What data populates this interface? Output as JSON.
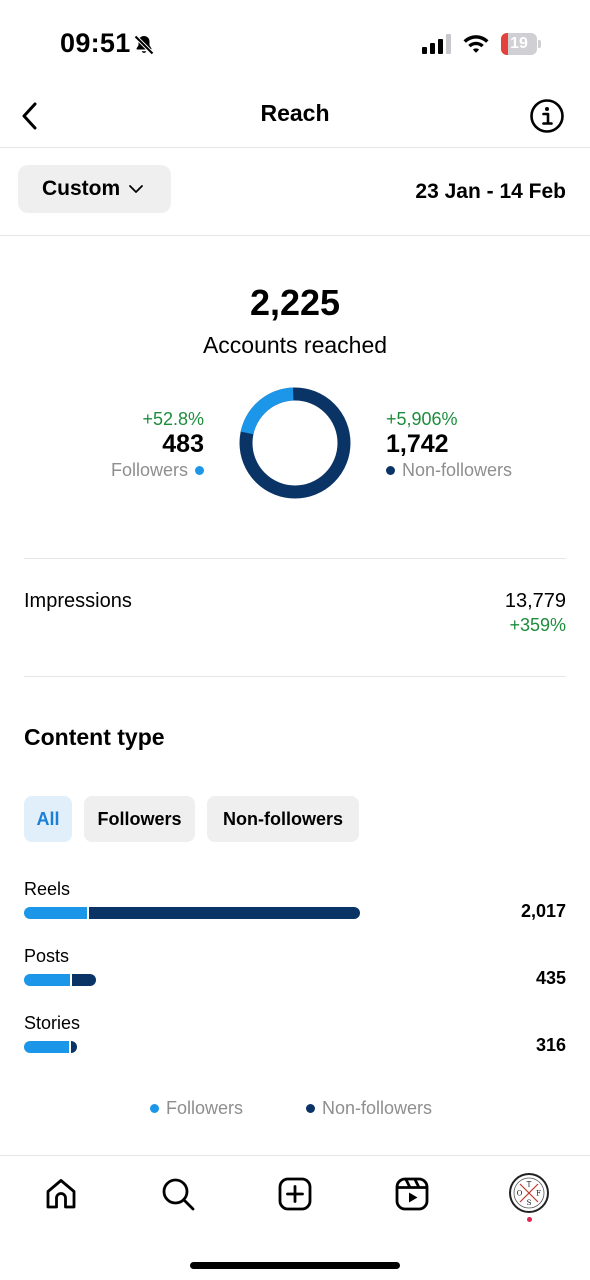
{
  "status_bar": {
    "time": "09:51",
    "battery_level": "19",
    "battery_color": "#e5413c",
    "icons": [
      "bell-slash-icon",
      "signal-icon",
      "wifi-icon",
      "battery-icon"
    ]
  },
  "header": {
    "title": "Reach",
    "icons": [
      "chevron-left-icon",
      "info-icon"
    ]
  },
  "filter": {
    "period_label": "Custom",
    "date_range": "23 Jan - 14 Feb"
  },
  "summary": {
    "total": "2,225",
    "total_label": "Accounts reached",
    "followers": {
      "pct": "+52.8%",
      "value": "483",
      "label": "Followers",
      "share": 0.217
    },
    "non_followers": {
      "pct": "+5,906%",
      "value": "1,742",
      "label": "Non-followers",
      "share": 0.783
    }
  },
  "impressions": {
    "label": "Impressions",
    "value": "13,779",
    "pct": "+359%"
  },
  "content_type": {
    "title": "Content type",
    "tabs": [
      "All",
      "Followers",
      "Non-followers"
    ],
    "selected_tab": "All",
    "rows": [
      {
        "label": "Reels",
        "value": "2,017",
        "followers_fraction": 0.19
      },
      {
        "label": "Posts",
        "value": "435",
        "followers_fraction": 0.65
      },
      {
        "label": "Stories",
        "value": "316",
        "followers_fraction": 0.88
      }
    ],
    "legend": [
      "Followers",
      "Non-followers"
    ]
  },
  "colors": {
    "followers": "#1c96e8",
    "non_followers": "#0b3466",
    "positive": "#1d8d3c",
    "chip_selected_bg": "#e1effb",
    "chip_selected_text": "#1c7fd6"
  },
  "bottom_nav": {
    "items": [
      "home-icon",
      "search-icon",
      "create-icon",
      "reels-icon",
      "profile-avatar"
    ],
    "avatar_letters": [
      "T",
      "O",
      "F",
      "S"
    ]
  }
}
